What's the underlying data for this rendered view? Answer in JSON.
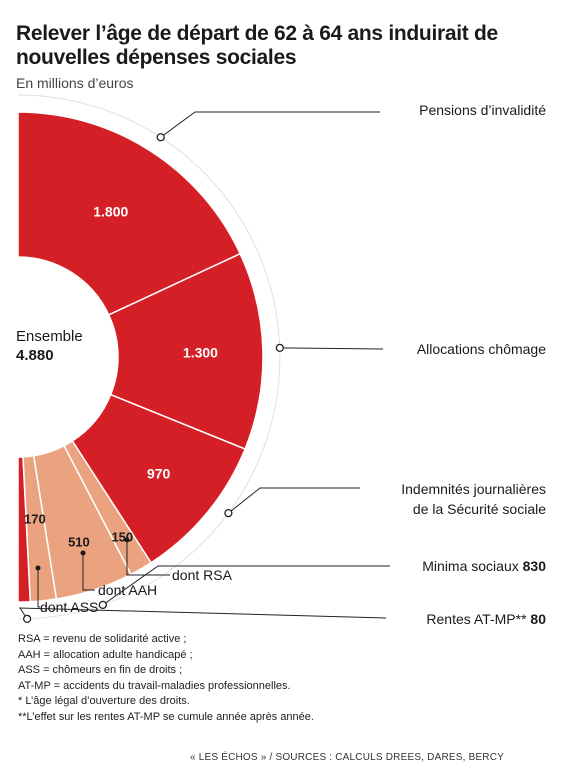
{
  "colors": {
    "main": "#d51f26",
    "light": "#eba37f",
    "outline": "#ffffff",
    "leader": "#222222"
  },
  "chart_data": {
    "type": "pie",
    "title": "Relever l’âge de départ de 62 à 64 ans induirait de nouvelles dépenses sociales",
    "subtitle": "En millions d’euros",
    "total_label": "Ensemble",
    "total_value": "4.880",
    "segments": [
      {
        "name": "Rentes AT-MP**",
        "value": 80,
        "value_label": "80",
        "group": "outer"
      },
      {
        "name": "Minima sociaux",
        "value": 830,
        "value_label": "830",
        "group": "outer"
      },
      {
        "name": "Indemnités journalières de la Sécurité sociale",
        "value": 970,
        "value_label": "970",
        "group": "outer"
      },
      {
        "name": "Allocations chômage",
        "value": 1300,
        "value_label": "1.300",
        "group": "outer"
      },
      {
        "name": "Pensions d’invalidité",
        "value": 1800,
        "value_label": "1.800",
        "group": "outer"
      }
    ],
    "minima_breakdown": [
      {
        "name": "dont ASS",
        "value": 170,
        "value_label": "170"
      },
      {
        "name": "dont AAH",
        "value": 510,
        "value_label": "510"
      },
      {
        "name": "dont RSA",
        "value": 150,
        "value_label": "150"
      }
    ]
  },
  "labels": {
    "pensions": "Pensions d’invalidité",
    "chomage": "Allocations chômage",
    "ij_line1": "Indemnités journalières",
    "ij_line2": "de la Sécurité sociale",
    "minima": "Minima sociaux ",
    "minima_value": "830",
    "rentes": "Rentes AT-MP** ",
    "rentes_value": "80",
    "dont_rsa": "dont RSA",
    "dont_aah": "dont AAH",
    "dont_ass": "dont ASS"
  },
  "notes": [
    "RSA = revenu de solidarité active ;",
    "AAH = allocation adulte handicapé ;",
    "ASS = chômeurs en fin de droits ;",
    "AT-MP = accidents du travail-maladies professionnelles.",
    "* L’âge légal d’ouverture des droits.",
    "**L’effet sur les rentes AT-MP se cumule année après année."
  ],
  "source": "« LES ÉCHOS » / SOURCES : CALCULS DREES, DARES, BERCY"
}
